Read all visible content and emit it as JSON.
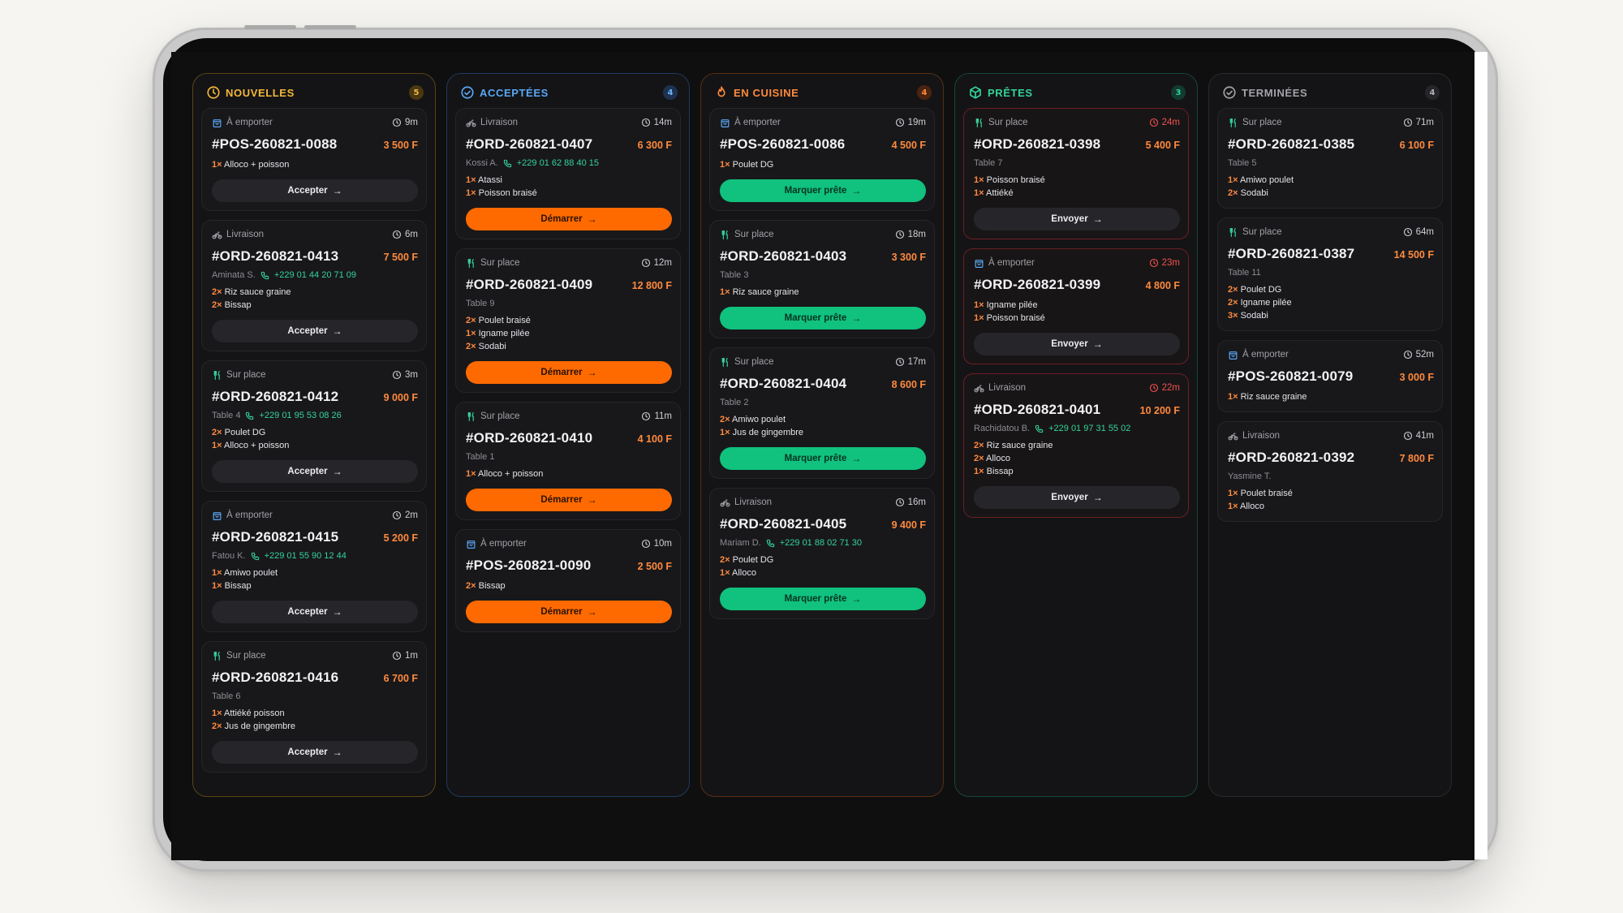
{
  "columns": [
    {
      "key": "nouvelles",
      "title": "NOUVELLES",
      "count": "5",
      "icon": "clock-icon",
      "accent": "#f4b73a",
      "cards": [
        {
          "type": "À emporter",
          "type_icon": "bag-icon",
          "time": "9m",
          "id": "#POS-260821-0088",
          "price": "3 500 F",
          "items": [
            {
              "q": "1×",
              "name": "Alloco + poisson"
            }
          ],
          "button": "Accepter"
        },
        {
          "type": "Livraison",
          "type_icon": "bike-icon",
          "time": "6m",
          "id": "#ORD-260821-0413",
          "price": "7 500 F",
          "customer": "Aminata S.",
          "phone": "+229 01 44 20 71 09",
          "items": [
            {
              "q": "2×",
              "name": "Riz sauce graine"
            },
            {
              "q": "2×",
              "name": "Bissap"
            }
          ],
          "button": "Accepter"
        },
        {
          "type": "Sur place",
          "type_icon": "utensils-icon",
          "time": "3m",
          "id": "#ORD-260821-0412",
          "price": "9 000 F",
          "customer": "Table 4",
          "phone": "+229 01 95 53 08 26",
          "items": [
            {
              "q": "2×",
              "name": "Poulet DG"
            },
            {
              "q": "1×",
              "name": "Alloco + poisson"
            }
          ],
          "button": "Accepter"
        },
        {
          "type": "À emporter",
          "type_icon": "bag-icon",
          "time": "2m",
          "id": "#ORD-260821-0415",
          "price": "5 200 F",
          "customer": "Fatou K.",
          "phone": "+229 01 55 90 12 44",
          "items": [
            {
              "q": "1×",
              "name": "Amiwo poulet"
            },
            {
              "q": "1×",
              "name": "Bissap"
            }
          ],
          "button": "Accepter"
        },
        {
          "type": "Sur place",
          "type_icon": "utensils-icon",
          "time": "1m",
          "id": "#ORD-260821-0416",
          "price": "6 700 F",
          "customer": "Table 6",
          "items": [
            {
              "q": "1×",
              "name": "Attiéké poisson"
            },
            {
              "q": "2×",
              "name": "Jus de gingembre"
            }
          ],
          "button": "Accepter"
        }
      ]
    },
    {
      "key": "acceptees",
      "title": "ACCEPTÉES",
      "count": "4",
      "icon": "check-circle-icon",
      "accent": "#5aa7f5",
      "cards": [
        {
          "type": "Livraison",
          "type_icon": "bike-icon",
          "time": "14m",
          "id": "#ORD-260821-0407",
          "price": "6 300 F",
          "customer": "Kossi A.",
          "phone": "+229 01 62 88 40 15",
          "items": [
            {
              "q": "1×",
              "name": "Atassi"
            },
            {
              "q": "1×",
              "name": "Poisson braisé"
            }
          ],
          "button": "Démarrer"
        },
        {
          "type": "Sur place",
          "type_icon": "utensils-icon",
          "time": "12m",
          "id": "#ORD-260821-0409",
          "price": "12 800 F",
          "customer": "Table 9",
          "items": [
            {
              "q": "2×",
              "name": "Poulet braisé"
            },
            {
              "q": "1×",
              "name": "Igname pilée"
            },
            {
              "q": "2×",
              "name": "Sodabi"
            }
          ],
          "button": "Démarrer"
        },
        {
          "type": "Sur place",
          "type_icon": "utensils-icon",
          "time": "11m",
          "id": "#ORD-260821-0410",
          "price": "4 100 F",
          "customer": "Table 1",
          "items": [
            {
              "q": "1×",
              "name": "Alloco + poisson"
            }
          ],
          "button": "Démarrer"
        },
        {
          "type": "À emporter",
          "type_icon": "bag-icon",
          "time": "10m",
          "id": "#POS-260821-0090",
          "price": "2 500 F",
          "items": [
            {
              "q": "2×",
              "name": "Bissap"
            }
          ],
          "button": "Démarrer"
        }
      ]
    },
    {
      "key": "cuisine",
      "title": "EN CUISINE",
      "count": "4",
      "icon": "flame-icon",
      "accent": "#ff8a3d",
      "cards": [
        {
          "type": "À emporter",
          "type_icon": "bag-icon",
          "time": "19m",
          "id": "#POS-260821-0086",
          "price": "4 500 F",
          "items": [
            {
              "q": "1×",
              "name": "Poulet DG"
            }
          ],
          "button": "Marquer prête"
        },
        {
          "type": "Sur place",
          "type_icon": "utensils-icon",
          "time": "18m",
          "id": "#ORD-260821-0403",
          "price": "3 300 F",
          "customer": "Table 3",
          "items": [
            {
              "q": "1×",
              "name": "Riz sauce graine"
            }
          ],
          "button": "Marquer prête"
        },
        {
          "type": "Sur place",
          "type_icon": "utensils-icon",
          "time": "17m",
          "id": "#ORD-260821-0404",
          "price": "8 600 F",
          "customer": "Table 2",
          "items": [
            {
              "q": "2×",
              "name": "Amiwo poulet"
            },
            {
              "q": "1×",
              "name": "Jus de gingembre"
            }
          ],
          "button": "Marquer prête"
        },
        {
          "type": "Livraison",
          "type_icon": "bike-icon",
          "time": "16m",
          "id": "#ORD-260821-0405",
          "price": "9 400 F",
          "customer": "Mariam D.",
          "phone": "+229 01 88 02 71 30",
          "items": [
            {
              "q": "2×",
              "name": "Poulet DG"
            },
            {
              "q": "1×",
              "name": "Alloco"
            }
          ],
          "button": "Marquer prête"
        }
      ]
    },
    {
      "key": "pretes",
      "title": "PRÊTES",
      "count": "3",
      "icon": "package-icon",
      "accent": "#34d399",
      "cards": [
        {
          "type": "Sur place",
          "type_icon": "utensils-icon",
          "time": "24m",
          "late": true,
          "id": "#ORD-260821-0398",
          "price": "5 400 F",
          "customer": "Table 7",
          "items": [
            {
              "q": "1×",
              "name": "Poisson braisé"
            },
            {
              "q": "1×",
              "name": "Attiéké"
            }
          ],
          "button": "Envoyer"
        },
        {
          "type": "À emporter",
          "type_icon": "bag-icon",
          "time": "23m",
          "late": true,
          "id": "#ORD-260821-0399",
          "price": "4 800 F",
          "items": [
            {
              "q": "1×",
              "name": "Igname pilée"
            },
            {
              "q": "1×",
              "name": "Poisson braisé"
            }
          ],
          "button": "Envoyer"
        },
        {
          "type": "Livraison",
          "type_icon": "bike-icon",
          "time": "22m",
          "late": true,
          "id": "#ORD-260821-0401",
          "price": "10 200 F",
          "customer": "Rachidatou B.",
          "phone": "+229 01 97 31 55 02",
          "items": [
            {
              "q": "2×",
              "name": "Riz sauce graine"
            },
            {
              "q": "2×",
              "name": "Alloco"
            },
            {
              "q": "1×",
              "name": "Bissap"
            }
          ],
          "button": "Envoyer"
        }
      ]
    },
    {
      "key": "terminees",
      "title": "TERMINÉES",
      "count": "4",
      "icon": "check-circle-icon",
      "accent": "#a3a3a8",
      "cards": [
        {
          "type": "Sur place",
          "type_icon": "utensils-icon",
          "time": "71m",
          "id": "#ORD-260821-0385",
          "price": "6 100 F",
          "customer": "Table 5",
          "items": [
            {
              "q": "1×",
              "name": "Amiwo poulet"
            },
            {
              "q": "2×",
              "name": "Sodabi"
            }
          ]
        },
        {
          "type": "Sur place",
          "type_icon": "utensils-icon",
          "time": "64m",
          "id": "#ORD-260821-0387",
          "price": "14 500 F",
          "customer": "Table 11",
          "items": [
            {
              "q": "2×",
              "name": "Poulet DG"
            },
            {
              "q": "2×",
              "name": "Igname pilée"
            },
            {
              "q": "3×",
              "name": "Sodabi"
            }
          ]
        },
        {
          "type": "À emporter",
          "type_icon": "bag-icon",
          "time": "52m",
          "id": "#POS-260821-0079",
          "price": "3 000 F",
          "items": [
            {
              "q": "1×",
              "name": "Riz sauce graine"
            }
          ]
        },
        {
          "type": "Livraison",
          "type_icon": "bike-icon",
          "time": "41m",
          "id": "#ORD-260821-0392",
          "price": "7 800 F",
          "customer": "Yasmine T.",
          "items": [
            {
              "q": "1×",
              "name": "Poulet braisé"
            },
            {
              "q": "1×",
              "name": "Alloco"
            }
          ]
        }
      ]
    }
  ]
}
